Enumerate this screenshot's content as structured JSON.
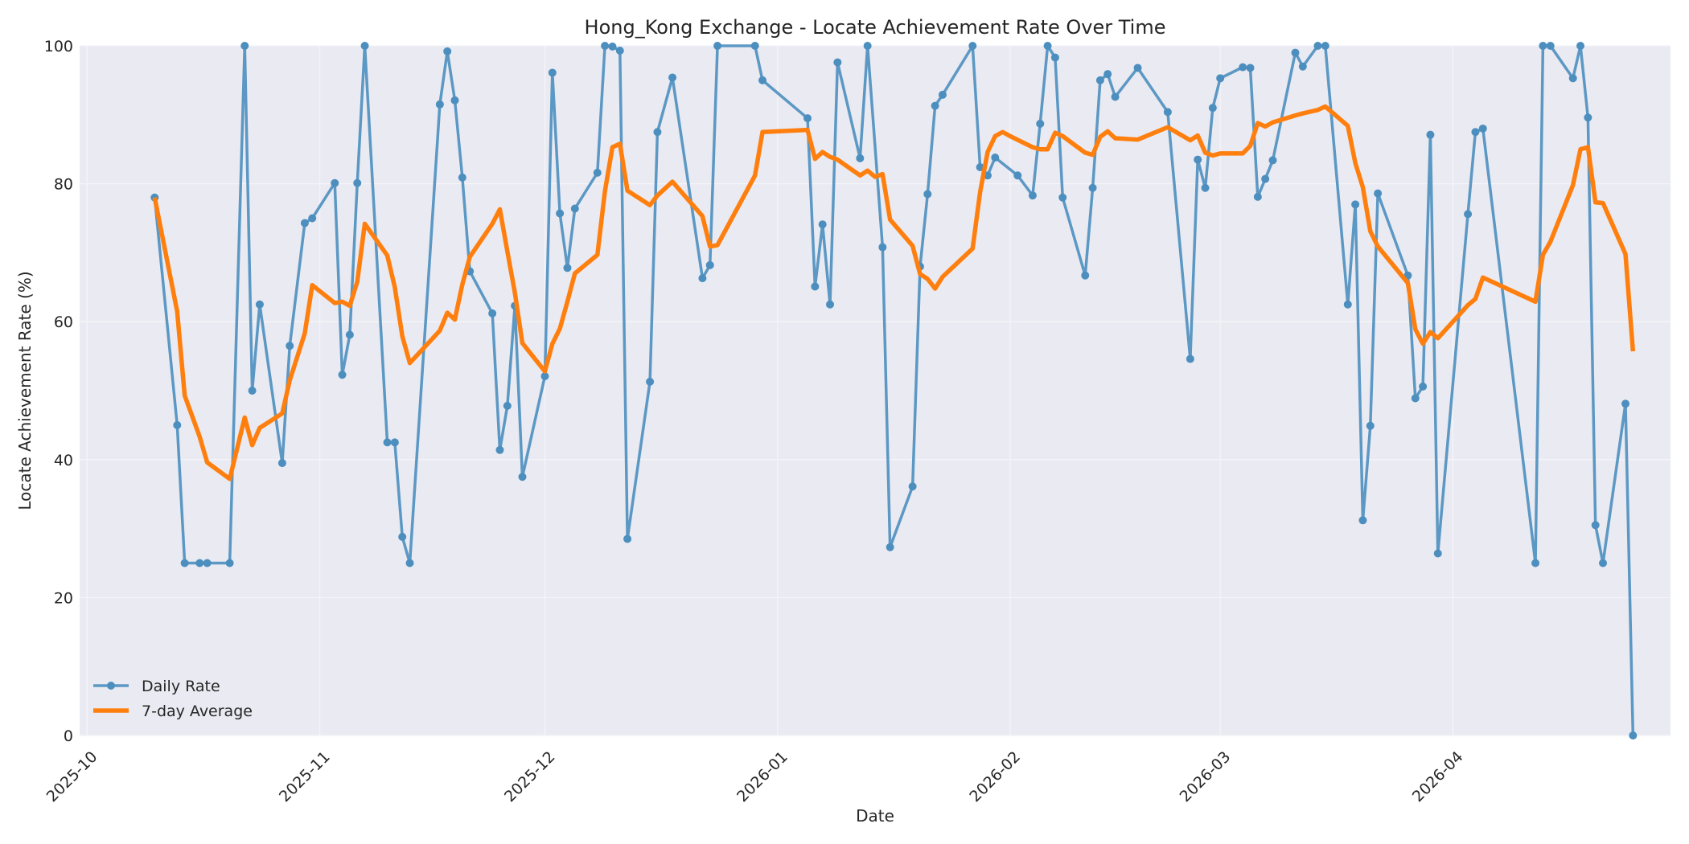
{
  "chart_data": {
    "type": "line",
    "title": "Hong_Kong Exchange - Locate Achievement Rate Over Time",
    "xlabel": "Date",
    "ylabel": "Locate Achievement Rate (%)",
    "ylim": [
      0,
      100
    ],
    "xlim": [
      "2025-09-30",
      "2026-04-30"
    ],
    "y_ticks": [
      0,
      20,
      40,
      60,
      80,
      100
    ],
    "x_ticks": [
      {
        "date": "2025-10-01",
        "label": "2025-10"
      },
      {
        "date": "2025-11-01",
        "label": "2025-11"
      },
      {
        "date": "2025-12-01",
        "label": "2025-12"
      },
      {
        "date": "2026-01-01",
        "label": "2026-01"
      },
      {
        "date": "2026-02-01",
        "label": "2026-02"
      },
      {
        "date": "2026-03-01",
        "label": "2026-03"
      },
      {
        "date": "2026-04-01",
        "label": "2026-04"
      }
    ],
    "grid": true,
    "legend_position": "lower-left",
    "colors": {
      "daily": "#4c8fbf",
      "avg": "#ff7f0e",
      "plot_bg": "#eaeaf2"
    },
    "series": [
      {
        "name": "Daily Rate",
        "style": "line-markers",
        "points": [
          [
            "2025-10-10",
            78.0
          ],
          [
            "2025-10-13",
            45.0
          ],
          [
            "2025-10-14",
            25.0
          ],
          [
            "2025-10-16",
            25.0
          ],
          [
            "2025-10-17",
            25.0
          ],
          [
            "2025-10-20",
            25.0
          ],
          [
            "2025-10-22",
            100.0
          ],
          [
            "2025-10-23",
            50.0
          ],
          [
            "2025-10-24",
            62.5
          ],
          [
            "2025-10-27",
            39.5
          ],
          [
            "2025-10-28",
            56.5
          ],
          [
            "2025-10-30",
            74.3
          ],
          [
            "2025-10-31",
            75.0
          ],
          [
            "2025-11-03",
            80.1
          ],
          [
            "2025-11-04",
            52.3
          ],
          [
            "2025-11-05",
            58.1
          ],
          [
            "2025-11-06",
            80.1
          ],
          [
            "2025-11-07",
            100.0
          ],
          [
            "2025-11-10",
            42.5
          ],
          [
            "2025-11-11",
            42.5
          ],
          [
            "2025-11-12",
            28.8
          ],
          [
            "2025-11-13",
            25.0
          ],
          [
            "2025-11-17",
            91.5
          ],
          [
            "2025-11-18",
            99.2
          ],
          [
            "2025-11-19",
            92.1
          ],
          [
            "2025-11-20",
            80.9
          ],
          [
            "2025-11-21",
            67.3
          ],
          [
            "2025-11-24",
            61.2
          ],
          [
            "2025-11-25",
            41.4
          ],
          [
            "2025-11-26",
            47.8
          ],
          [
            "2025-11-27",
            62.3
          ],
          [
            "2025-11-28",
            37.5
          ],
          [
            "2025-12-01",
            52.1
          ],
          [
            "2025-12-02",
            96.1
          ],
          [
            "2025-12-03",
            75.7
          ],
          [
            "2025-12-04",
            67.8
          ],
          [
            "2025-12-05",
            76.4
          ],
          [
            "2025-12-08",
            81.6
          ],
          [
            "2025-12-09",
            100.0
          ],
          [
            "2025-12-10",
            99.9
          ],
          [
            "2025-12-11",
            99.3
          ],
          [
            "2025-12-12",
            28.5
          ],
          [
            "2025-12-15",
            51.3
          ],
          [
            "2025-12-16",
            87.5
          ],
          [
            "2025-12-18",
            95.4
          ],
          [
            "2025-12-22",
            66.3
          ],
          [
            "2025-12-23",
            68.2
          ],
          [
            "2025-12-24",
            100.0
          ],
          [
            "2025-12-29",
            100.0
          ],
          [
            "2025-12-30",
            95.0
          ],
          [
            "2026-01-05",
            89.5
          ],
          [
            "2026-01-06",
            65.1
          ],
          [
            "2026-01-07",
            74.1
          ],
          [
            "2026-01-08",
            62.5
          ],
          [
            "2026-01-09",
            97.6
          ],
          [
            "2026-01-12",
            83.7
          ],
          [
            "2026-01-13",
            100.0
          ],
          [
            "2026-01-15",
            70.8
          ],
          [
            "2026-01-16",
            27.3
          ],
          [
            "2026-01-19",
            36.1
          ],
          [
            "2026-01-20",
            68.0
          ],
          [
            "2026-01-21",
            78.5
          ],
          [
            "2026-01-22",
            91.3
          ],
          [
            "2026-01-23",
            92.9
          ],
          [
            "2026-01-27",
            100.0
          ],
          [
            "2026-01-28",
            82.4
          ],
          [
            "2026-01-29",
            81.2
          ],
          [
            "2026-01-30",
            83.8
          ],
          [
            "2026-02-02",
            81.2
          ],
          [
            "2026-02-04",
            78.3
          ],
          [
            "2026-02-05",
            88.7
          ],
          [
            "2026-02-06",
            100.0
          ],
          [
            "2026-02-07",
            98.3
          ],
          [
            "2026-02-08",
            78.0
          ],
          [
            "2026-02-11",
            66.7
          ],
          [
            "2026-02-12",
            79.4
          ],
          [
            "2026-02-13",
            95.0
          ],
          [
            "2026-02-14",
            95.9
          ],
          [
            "2026-02-15",
            92.6
          ],
          [
            "2026-02-18",
            96.8
          ],
          [
            "2026-02-22",
            90.4
          ],
          [
            "2026-02-25",
            54.6
          ],
          [
            "2026-02-26",
            83.5
          ],
          [
            "2026-02-27",
            79.4
          ],
          [
            "2026-02-28",
            91.0
          ],
          [
            "2026-03-01",
            95.3
          ],
          [
            "2026-03-04",
            96.9
          ],
          [
            "2026-03-05",
            96.8
          ],
          [
            "2026-03-06",
            78.1
          ],
          [
            "2026-03-07",
            80.7
          ],
          [
            "2026-03-08",
            83.4
          ],
          [
            "2026-03-11",
            99.0
          ],
          [
            "2026-03-12",
            97.0
          ],
          [
            "2026-03-14",
            100.0
          ],
          [
            "2026-03-15",
            100.0
          ],
          [
            "2026-03-18",
            62.5
          ],
          [
            "2026-03-19",
            77.0
          ],
          [
            "2026-03-20",
            31.2
          ],
          [
            "2026-03-21",
            44.9
          ],
          [
            "2026-03-22",
            78.6
          ],
          [
            "2026-03-26",
            66.7
          ],
          [
            "2026-03-27",
            48.9
          ],
          [
            "2026-03-28",
            50.6
          ],
          [
            "2026-03-29",
            87.1
          ],
          [
            "2026-03-30",
            26.4
          ],
          [
            "2026-04-03",
            75.6
          ],
          [
            "2026-04-04",
            87.5
          ],
          [
            "2026-04-05",
            88.0
          ],
          [
            "2026-04-12",
            25.0
          ],
          [
            "2026-04-13",
            100.0
          ],
          [
            "2026-04-14",
            100.0
          ],
          [
            "2026-04-17",
            95.3
          ],
          [
            "2026-04-18",
            100.0
          ],
          [
            "2026-04-19",
            89.6
          ],
          [
            "2026-04-20",
            30.5
          ],
          [
            "2026-04-21",
            25.0
          ],
          [
            "2026-04-24",
            48.1
          ],
          [
            "2026-04-25",
            0.0
          ]
        ]
      },
      {
        "name": "7-day Average",
        "style": "line",
        "points": [
          [
            "2025-10-10",
            78.0
          ],
          [
            "2025-10-13",
            61.5
          ],
          [
            "2025-10-14",
            49.3
          ],
          [
            "2025-10-16",
            43.3
          ],
          [
            "2025-10-17",
            39.6
          ],
          [
            "2025-10-20",
            37.2
          ],
          [
            "2025-10-22",
            46.1
          ],
          [
            "2025-10-23",
            42.1
          ],
          [
            "2025-10-24",
            44.6
          ],
          [
            "2025-10-27",
            46.7
          ],
          [
            "2025-10-28",
            51.5
          ],
          [
            "2025-10-30",
            58.3
          ],
          [
            "2025-10-31",
            65.3
          ],
          [
            "2025-11-03",
            62.7
          ],
          [
            "2025-11-04",
            62.9
          ],
          [
            "2025-11-05",
            62.3
          ],
          [
            "2025-11-06",
            65.8
          ],
          [
            "2025-11-07",
            74.2
          ],
          [
            "2025-11-10",
            69.6
          ],
          [
            "2025-11-11",
            65.0
          ],
          [
            "2025-11-12",
            57.9
          ],
          [
            "2025-11-13",
            54.0
          ],
          [
            "2025-11-17",
            58.7
          ],
          [
            "2025-11-18",
            61.3
          ],
          [
            "2025-11-19",
            60.3
          ],
          [
            "2025-11-20",
            65.4
          ],
          [
            "2025-11-21",
            69.4
          ],
          [
            "2025-11-24",
            74.2
          ],
          [
            "2025-11-25",
            76.3
          ],
          [
            "2025-11-26",
            70.2
          ],
          [
            "2025-11-27",
            64.2
          ],
          [
            "2025-11-28",
            56.9
          ],
          [
            "2025-12-01",
            52.8
          ],
          [
            "2025-12-02",
            56.8
          ],
          [
            "2025-12-03",
            59.0
          ],
          [
            "2025-12-04",
            62.9
          ],
          [
            "2025-12-05",
            67.0
          ],
          [
            "2025-12-08",
            69.7
          ],
          [
            "2025-12-09",
            78.9
          ],
          [
            "2025-12-10",
            85.3
          ],
          [
            "2025-12-11",
            85.8
          ],
          [
            "2025-12-12",
            79.0
          ],
          [
            "2025-12-15",
            76.9
          ],
          [
            "2025-12-16",
            78.3
          ],
          [
            "2025-12-18",
            80.3
          ],
          [
            "2025-12-22",
            75.3
          ],
          [
            "2025-12-23",
            70.9
          ],
          [
            "2025-12-24",
            71.1
          ],
          [
            "2025-12-29",
            81.2
          ],
          [
            "2025-12-30",
            87.5
          ],
          [
            "2026-01-05",
            87.8
          ],
          [
            "2026-01-06",
            83.6
          ],
          [
            "2026-01-07",
            84.6
          ],
          [
            "2026-01-08",
            83.9
          ],
          [
            "2026-01-09",
            83.5
          ],
          [
            "2026-01-12",
            81.2
          ],
          [
            "2026-01-13",
            81.9
          ],
          [
            "2026-01-14",
            81.0
          ],
          [
            "2026-01-15",
            81.4
          ],
          [
            "2026-01-16",
            74.8
          ],
          [
            "2026-01-19",
            71.0
          ],
          [
            "2026-01-20",
            66.9
          ],
          [
            "2026-01-21",
            66.2
          ],
          [
            "2026-01-22",
            64.8
          ],
          [
            "2026-01-23",
            66.5
          ],
          [
            "2026-01-27",
            70.6
          ],
          [
            "2026-01-28",
            78.8
          ],
          [
            "2026-01-29",
            84.6
          ],
          [
            "2026-01-30",
            86.9
          ],
          [
            "2026-01-31",
            87.5
          ],
          [
            "2026-02-01",
            86.9
          ],
          [
            "2026-02-04",
            85.3
          ],
          [
            "2026-02-05",
            85.0
          ],
          [
            "2026-02-06",
            85.0
          ],
          [
            "2026-02-07",
            87.4
          ],
          [
            "2026-02-08",
            86.9
          ],
          [
            "2026-02-11",
            84.5
          ],
          [
            "2026-02-12",
            84.2
          ],
          [
            "2026-02-13",
            86.8
          ],
          [
            "2026-02-14",
            87.6
          ],
          [
            "2026-02-15",
            86.6
          ],
          [
            "2026-02-18",
            86.4
          ],
          [
            "2026-02-22",
            88.2
          ],
          [
            "2026-02-25",
            86.3
          ],
          [
            "2026-02-26",
            87.0
          ],
          [
            "2026-02-27",
            84.5
          ],
          [
            "2026-02-28",
            84.1
          ],
          [
            "2026-03-01",
            84.4
          ],
          [
            "2026-03-04",
            84.4
          ],
          [
            "2026-03-05",
            85.5
          ],
          [
            "2026-03-06",
            88.8
          ],
          [
            "2026-03-07",
            88.3
          ],
          [
            "2026-03-08",
            88.9
          ],
          [
            "2026-03-11",
            89.9
          ],
          [
            "2026-03-12",
            90.2
          ],
          [
            "2026-03-14",
            90.7
          ],
          [
            "2026-03-15",
            91.2
          ],
          [
            "2026-03-18",
            88.4
          ],
          [
            "2026-03-19",
            83.0
          ],
          [
            "2026-03-20",
            79.5
          ],
          [
            "2026-03-21",
            73.1
          ],
          [
            "2026-03-22",
            70.9
          ],
          [
            "2026-03-26",
            65.6
          ],
          [
            "2026-03-27",
            58.9
          ],
          [
            "2026-03-28",
            56.8
          ],
          [
            "2026-03-29",
            58.5
          ],
          [
            "2026-03-30",
            57.6
          ],
          [
            "2026-04-03",
            62.4
          ],
          [
            "2026-04-04",
            63.3
          ],
          [
            "2026-04-05",
            66.4
          ],
          [
            "2026-04-12",
            62.9
          ],
          [
            "2026-04-13",
            69.7
          ],
          [
            "2026-04-14",
            71.6
          ],
          [
            "2026-04-17",
            79.8
          ],
          [
            "2026-04-18",
            85.0
          ],
          [
            "2026-04-19",
            85.3
          ],
          [
            "2026-04-20",
            77.3
          ],
          [
            "2026-04-21",
            77.2
          ],
          [
            "2026-04-24",
            69.8
          ],
          [
            "2026-04-25",
            55.7
          ]
        ]
      }
    ]
  }
}
